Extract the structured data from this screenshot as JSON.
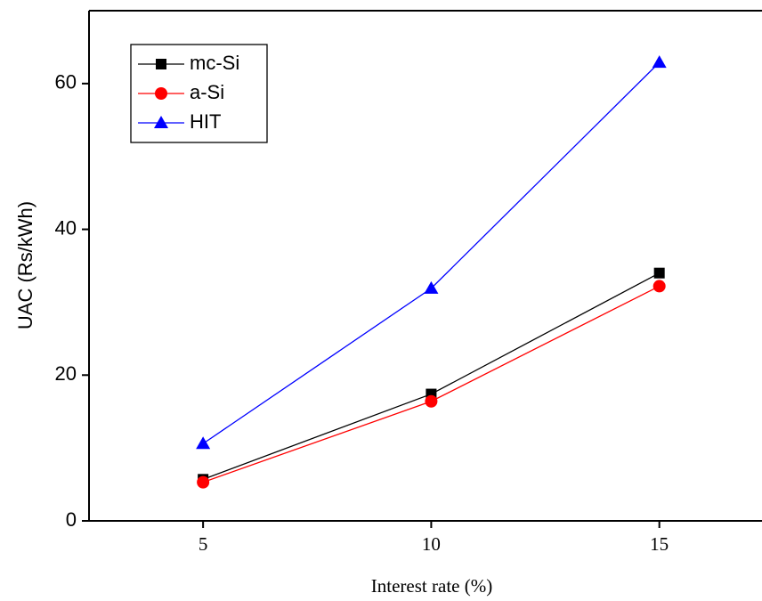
{
  "chart_data": {
    "type": "line",
    "x_label": "Interest rate (%)",
    "y_label": "UAC (Rs/kWh)",
    "x": [
      5,
      10,
      15
    ],
    "series": [
      {
        "name": "mc-Si",
        "color": "#000000",
        "marker": "square",
        "values": [
          5.7,
          17.4,
          34.0
        ]
      },
      {
        "name": "a-Si",
        "color": "#ff0000",
        "marker": "circle",
        "values": [
          5.3,
          16.4,
          32.2
        ]
      },
      {
        "name": "HIT",
        "color": "#0000ff",
        "marker": "triangle",
        "values": [
          10.6,
          31.9,
          62.9
        ]
      }
    ],
    "xlim": [
      2.5,
      17.25
    ],
    "xticks": [
      5,
      10,
      15
    ],
    "ylim": [
      0,
      70
    ],
    "yticks": [
      0,
      20,
      40,
      60
    ],
    "legend": "upper left"
  }
}
